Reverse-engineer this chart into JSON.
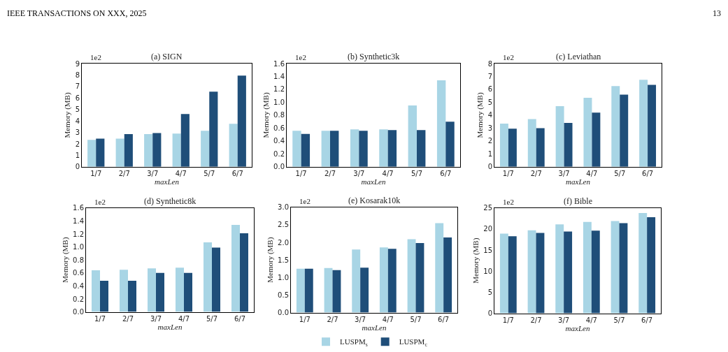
{
  "chart_data": [
    {
      "type": "bar",
      "title": "(a) SIGN",
      "xlabel": "maxLen",
      "ylabel": "Memory (MB)",
      "annotations": [
        "IEEE TRANSACTIONS ON XXX, 2025",
        "13",
        "1e2"
      ],
      "categories": [
        "1/7",
        "2/7",
        "3/7",
        "4/7",
        "5/7",
        "6/7"
      ],
      "series": [
        {
          "name": "LUSPM$_{s}$",
          "color": "#a8d5e5",
          "values": [
            2.35,
            2.45,
            2.85,
            2.9,
            3.15,
            3.75
          ]
        },
        {
          "name": "LUSPM$_{c}$",
          "color": "#1f4e79",
          "values": [
            2.45,
            2.85,
            2.95,
            4.6,
            6.55,
            7.95
          ]
        }
      ],
      "ylim": [
        0,
        9
      ],
      "yticks": [
        0,
        1,
        2,
        3,
        4,
        5,
        6,
        7,
        8,
        9
      ],
      "grid": false,
      "legend": "bottom"
    },
    {
      "type": "bar",
      "title": "(b) Synthetic3k",
      "xlabel": "maxLen",
      "ylabel": "Memory (MB)",
      "annotations": [
        "1e2"
      ],
      "categories": [
        "1/7",
        "2/7",
        "3/7",
        "4/7",
        "5/7",
        "6/7"
      ],
      "series": [
        {
          "name": "LUSPM$_{s}$",
          "color": "#a8d5e5",
          "values": [
            0.56,
            0.56,
            0.58,
            0.58,
            0.95,
            1.34
          ]
        },
        {
          "name": "LUSPM$_{c}$",
          "color": "#1f4e79",
          "values": [
            0.51,
            0.56,
            0.56,
            0.57,
            0.57,
            0.7
          ]
        }
      ],
      "ylim": [
        0,
        1.6
      ],
      "yticks": [
        {
          "value": 0,
          "label": "0.0"
        },
        {
          "value": 0.2,
          "label": "0.2"
        },
        {
          "value": 0.4,
          "label": "0.4"
        },
        {
          "value": 0.6,
          "label": "0.6"
        },
        {
          "value": 0.8,
          "label": "0.8"
        },
        {
          "value": 1.0,
          "label": "1.0"
        },
        {
          "value": 1.2,
          "label": "1.2"
        },
        {
          "value": 1.4,
          "label": "1.4"
        },
        {
          "value": 1.6,
          "label": "1.6"
        }
      ],
      "grid": false,
      "legend": false
    },
    {
      "type": "bar",
      "title": "(c) Leviathan",
      "xlabel": "maxLen",
      "ylabel": "Memory (MB)",
      "annotations": [
        "1e2"
      ],
      "categories": [
        "1/7",
        "2/7",
        "3/7",
        "4/7",
        "5/7",
        "6/7"
      ],
      "series": [
        {
          "name": "LUSPM$_{s}$",
          "color": "#a8d5e5",
          "values": [
            3.35,
            3.7,
            4.7,
            5.35,
            6.25,
            6.75
          ]
        },
        {
          "name": "LUSPM$_{c}$",
          "color": "#1f4e79",
          "values": [
            2.95,
            3.0,
            3.4,
            4.2,
            5.6,
            6.35
          ]
        }
      ],
      "ylim": [
        0,
        8
      ],
      "yticks": [
        0,
        1,
        2,
        3,
        4,
        5,
        6,
        7,
        8
      ],
      "grid": false,
      "legend": false
    },
    {
      "type": "bar",
      "title": "(d) Synthetic8k",
      "xlabel": "maxLen",
      "ylabel": "Memory (MB)",
      "annotations": [
        "1e2"
      ],
      "categories": [
        "1/7",
        "2/7",
        "3/7",
        "4/7",
        "5/7",
        "6/7"
      ],
      "series": [
        {
          "name": "LUSPM$_{s}$",
          "color": "#a8d5e5",
          "values": [
            0.64,
            0.65,
            0.67,
            0.68,
            1.07,
            1.34
          ]
        },
        {
          "name": "LUSPM$_{c}$",
          "color": "#1f4e79",
          "values": [
            0.48,
            0.48,
            0.6,
            0.6,
            0.99,
            1.21
          ]
        }
      ],
      "ylim": [
        0,
        1.6
      ],
      "yticks": [
        {
          "value": 0,
          "label": "0.0"
        },
        {
          "value": 0.2,
          "label": "0.2"
        },
        {
          "value": 0.4,
          "label": "0.4"
        },
        {
          "value": 0.6,
          "label": "0.6"
        },
        {
          "value": 0.8,
          "label": "0.8"
        },
        {
          "value": 1.0,
          "label": "1.0"
        },
        {
          "value": 1.2,
          "label": "1.2"
        },
        {
          "value": 1.4,
          "label": "1.4"
        },
        {
          "value": 1.6,
          "label": "1.6"
        }
      ],
      "grid": false,
      "legend": false
    },
    {
      "type": "bar",
      "title": "(e) Kosarak10k",
      "xlabel": "maxLen",
      "ylabel": "Memory (MB)",
      "annotations": [
        "1e2"
      ],
      "categories": [
        "1/7",
        "2/7",
        "3/7",
        "4/7",
        "5/7",
        "6/7"
      ],
      "series": [
        {
          "name": "LUSPM$_{s}$",
          "color": "#a8d5e5",
          "values": [
            1.25,
            1.27,
            1.8,
            1.86,
            2.09,
            2.55
          ]
        },
        {
          "name": "LUSPM$_{c}$",
          "color": "#1f4e79",
          "values": [
            1.25,
            1.21,
            1.28,
            1.82,
            1.98,
            2.14
          ]
        }
      ],
      "ylim": [
        0,
        3
      ],
      "yticks": [
        {
          "value": 0,
          "label": "0.0"
        },
        {
          "value": 0.5,
          "label": "0.5"
        },
        {
          "value": 1.0,
          "label": "1.0"
        },
        {
          "value": 1.5,
          "label": "1.5"
        },
        {
          "value": 2.0,
          "label": "2.0"
        },
        {
          "value": 2.5,
          "label": "2.5"
        },
        {
          "value": 3.0,
          "label": "3.0"
        }
      ],
      "grid": false,
      "legend": false
    },
    {
      "type": "bar",
      "title": "(f) Bible",
      "xlabel": "maxLen",
      "ylabel": "Memory (MB)",
      "annotations": [
        "1e2"
      ],
      "categories": [
        "1/7",
        "2/7",
        "3/7",
        "4/7",
        "5/7",
        "6/7"
      ],
      "series": [
        {
          "name": "LUSPM$_{s}$",
          "color": "#a8d5e5",
          "values": [
            18.9,
            19.7,
            21.1,
            21.7,
            21.9,
            23.8
          ]
        },
        {
          "name": "LUSPM$_{c}$",
          "color": "#1f4e79",
          "values": [
            18.3,
            19.1,
            19.4,
            19.6,
            21.4,
            22.8
          ]
        }
      ],
      "ylim": [
        0,
        25
      ],
      "yticks": [
        0,
        5,
        10,
        15,
        20,
        25
      ],
      "grid": false,
      "legend": false
    }
  ]
}
